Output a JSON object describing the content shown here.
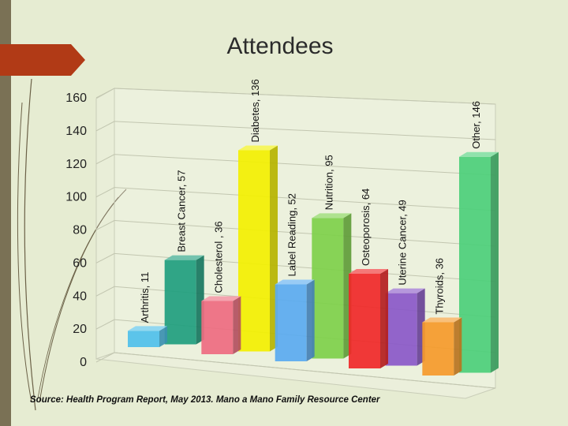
{
  "slide": {
    "title": "Attendees"
  },
  "source": "Source: Health Program Report, May 2013. Mano a Mano Family Resource Center",
  "chart_data": {
    "type": "bar",
    "categories": [
      "Arthritis",
      "Breast Cancer",
      "Cholesterol ",
      "Diabetes",
      "Label Reading",
      "Nutrition",
      "Osteoporosis",
      "Uterine Cancer",
      "Thyroids",
      "Other"
    ],
    "values": [
      11,
      57,
      36,
      136,
      52,
      95,
      64,
      49,
      36,
      146
    ],
    "data_labels": [
      "Arthritis, 11",
      "Breast Cancer, 57",
      "Cholesterol , 36",
      "Diabetes, 136",
      "Label Reading, 52",
      "Nutrition, 95",
      "Osteoporosis, 64",
      "Uterine Cancer, 49",
      "Thyroids, 36",
      "Other, 146"
    ],
    "ylim": [
      0,
      160
    ],
    "yticks": [
      0,
      20,
      40,
      60,
      80,
      100,
      120,
      140,
      160
    ],
    "colors": [
      "#4fc0ea",
      "#1f9e7e",
      "#ee6b80",
      "#f3f000",
      "#5aaaf0",
      "#7ed04a",
      "#f02828",
      "#8a58c8",
      "#f59a2a",
      "#4ccf7a"
    ],
    "grid": true,
    "legend": "none",
    "style": "3d"
  }
}
